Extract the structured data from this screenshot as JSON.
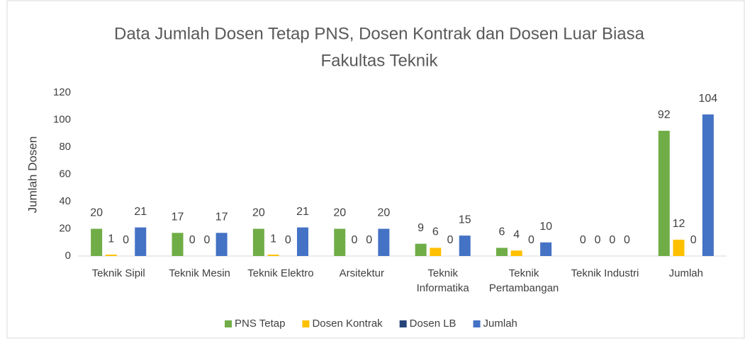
{
  "chart_data": {
    "type": "bar",
    "title": [
      "Data Jumlah Dosen Tetap PNS, Dosen Kontrak dan Dosen Luar Biasa",
      "Fakultas Teknik"
    ],
    "y_label": "Jumlah Dosen",
    "categories": [
      "Teknik Sipil",
      "Teknik Mesin",
      "Teknik Elektro",
      "Arsitektur",
      "Teknik Informatika",
      "Teknik Pertambangan",
      "Teknik Industri",
      "Jumlah"
    ],
    "series": [
      {
        "name": "PNS Tetap",
        "color": "#70ad47",
        "values": [
          20,
          17,
          20,
          20,
          9,
          6,
          0,
          92
        ]
      },
      {
        "name": "Dosen Kontrak",
        "color": "#ffc000",
        "values": [
          1,
          0,
          1,
          0,
          6,
          4,
          0,
          12
        ]
      },
      {
        "name": "Dosen LB",
        "color": "#264478",
        "values": [
          0,
          0,
          0,
          0,
          0,
          0,
          0,
          0
        ]
      },
      {
        "name": "Jumlah",
        "color": "#4472c4",
        "values": [
          21,
          17,
          21,
          20,
          15,
          10,
          0,
          104
        ]
      }
    ],
    "ylim": [
      0,
      120
    ],
    "yticks": [
      0,
      20,
      40,
      60,
      80,
      100,
      120
    ],
    "grid": false,
    "legend": "bottom"
  }
}
